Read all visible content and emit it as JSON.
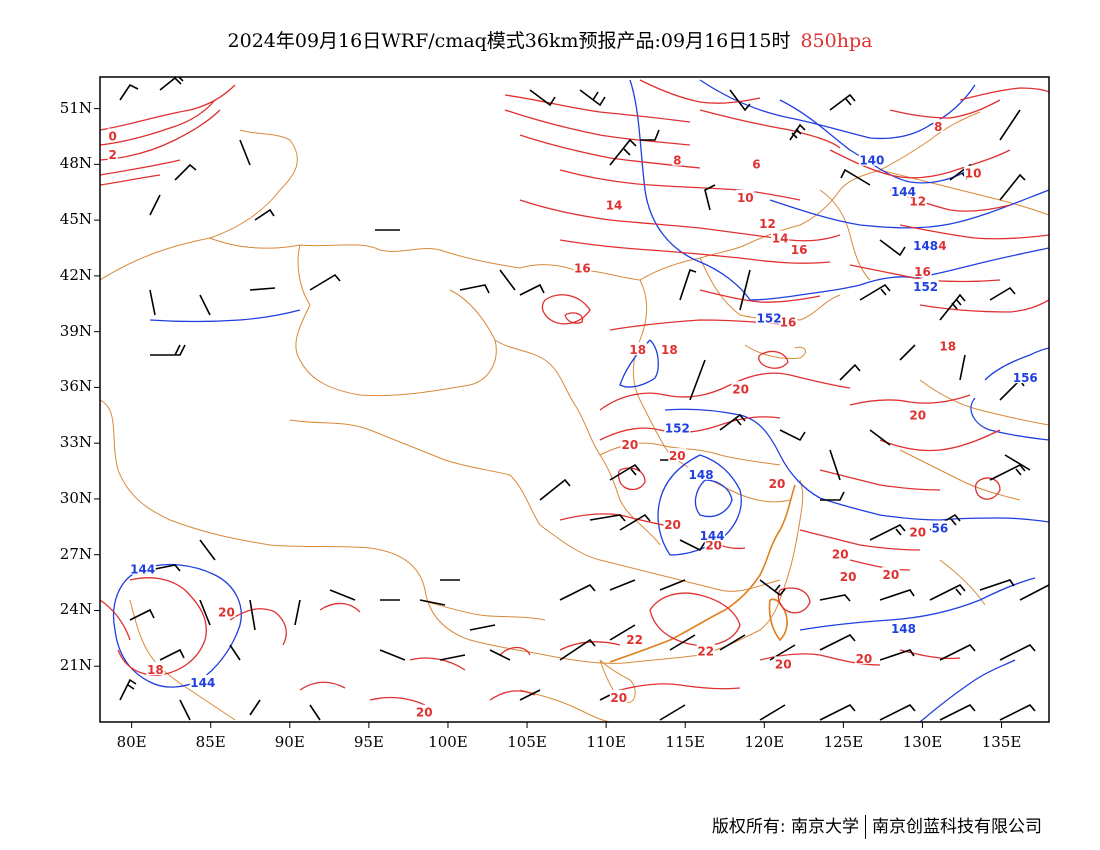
{
  "title": {
    "main": "2024年09月16日WRF/cmaq模式36km预报产品:09月16日15时",
    "level": "850hpa"
  },
  "axes": {
    "lat_labels": [
      "51N",
      "48N",
      "45N",
      "42N",
      "39N",
      "36N",
      "33N",
      "30N",
      "27N",
      "24N",
      "21N"
    ],
    "lon_labels": [
      "80E",
      "85E",
      "90E",
      "95E",
      "100E",
      "105E",
      "110E",
      "115E",
      "120E",
      "125E",
      "130E",
      "135E"
    ]
  },
  "colors": {
    "temperature_contour": "#e03030",
    "height_contour": "#1f3fe0",
    "boundary": "#d9893a",
    "wind_barb": "#000000"
  },
  "temperature_labels": [
    {
      "text": "0",
      "lon": 78.8,
      "lat": 49.5
    },
    {
      "text": "2",
      "lon": 78.8,
      "lat": 48.5
    },
    {
      "text": "8",
      "lon": 114.5,
      "lat": 48.2
    },
    {
      "text": "6",
      "lon": 119.5,
      "lat": 48.0
    },
    {
      "text": "8",
      "lon": 131.0,
      "lat": 50.0
    },
    {
      "text": "10",
      "lon": 118.8,
      "lat": 46.2
    },
    {
      "text": "10",
      "lon": 133.2,
      "lat": 47.5
    },
    {
      "text": "12",
      "lon": 120.2,
      "lat": 44.8
    },
    {
      "text": "12",
      "lon": 129.7,
      "lat": 46.0
    },
    {
      "text": "14",
      "lon": 110.5,
      "lat": 45.8
    },
    {
      "text": "14",
      "lon": 121.0,
      "lat": 44.0
    },
    {
      "text": "14",
      "lon": 131.0,
      "lat": 43.6
    },
    {
      "text": "16",
      "lon": 122.2,
      "lat": 43.4
    },
    {
      "text": "16",
      "lon": 108.5,
      "lat": 42.4
    },
    {
      "text": "16",
      "lon": 130.0,
      "lat": 42.2
    },
    {
      "text": "16",
      "lon": 121.5,
      "lat": 39.5
    },
    {
      "text": "18",
      "lon": 112.0,
      "lat": 38.0
    },
    {
      "text": "18",
      "lon": 114.0,
      "lat": 38.0
    },
    {
      "text": "18",
      "lon": 131.6,
      "lat": 38.2
    },
    {
      "text": "20",
      "lon": 118.5,
      "lat": 35.9
    },
    {
      "text": "20",
      "lon": 129.7,
      "lat": 34.5
    },
    {
      "text": "20",
      "lon": 111.5,
      "lat": 32.9
    },
    {
      "text": "20",
      "lon": 114.5,
      "lat": 32.3
    },
    {
      "text": "20",
      "lon": 120.8,
      "lat": 30.8
    },
    {
      "text": "20",
      "lon": 114.2,
      "lat": 28.6
    },
    {
      "text": "20",
      "lon": 116.8,
      "lat": 27.5
    },
    {
      "text": "20",
      "lon": 129.7,
      "lat": 28.2
    },
    {
      "text": "20",
      "lon": 124.8,
      "lat": 27.0
    },
    {
      "text": "20",
      "lon": 125.3,
      "lat": 25.8
    },
    {
      "text": "20",
      "lon": 128.0,
      "lat": 25.9
    },
    {
      "text": "20",
      "lon": 86.0,
      "lat": 23.9
    },
    {
      "text": "22",
      "lon": 111.8,
      "lat": 22.4
    },
    {
      "text": "22",
      "lon": 116.3,
      "lat": 21.8
    },
    {
      "text": "20",
      "lon": 121.2,
      "lat": 21.1
    },
    {
      "text": "20",
      "lon": 126.3,
      "lat": 21.4
    },
    {
      "text": "18",
      "lon": 81.5,
      "lat": 20.8
    },
    {
      "text": "20",
      "lon": 110.8,
      "lat": 19.3
    },
    {
      "text": "20",
      "lon": 98.5,
      "lat": 18.5
    }
  ],
  "height_labels": [
    {
      "text": "140",
      "lon": 126.8,
      "lat": 48.2
    },
    {
      "text": "144",
      "lon": 128.8,
      "lat": 46.5
    },
    {
      "text": "148",
      "lon": 130.2,
      "lat": 43.6
    },
    {
      "text": "152",
      "lon": 130.2,
      "lat": 41.4
    },
    {
      "text": "152",
      "lon": 120.3,
      "lat": 39.7
    },
    {
      "text": "156",
      "lon": 136.5,
      "lat": 36.5
    },
    {
      "text": "152",
      "lon": 114.5,
      "lat": 33.8
    },
    {
      "text": "148",
      "lon": 116.0,
      "lat": 31.3
    },
    {
      "text": "144",
      "lon": 116.7,
      "lat": 28.0
    },
    {
      "text": "56",
      "lon": 131.1,
      "lat": 28.4
    },
    {
      "text": "144",
      "lon": 80.7,
      "lat": 26.2
    },
    {
      "text": "148",
      "lon": 128.8,
      "lat": 23.0
    },
    {
      "text": "144",
      "lon": 84.5,
      "lat": 20.1
    }
  ],
  "copyright": {
    "left": "版权所有: 南京大学",
    "right": "南京创蓝科技有限公司"
  }
}
